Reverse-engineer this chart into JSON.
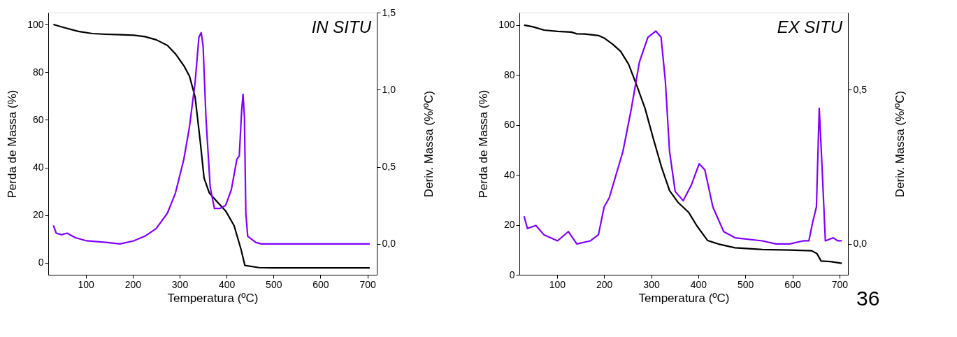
{
  "chart_data": [
    {
      "type": "line",
      "title": "IN SITU",
      "xlabel": "Temperatura (ºC)",
      "ylabel": "Perda de Massa (%)",
      "y2label": "Deriv. Massa (%/ºC)",
      "xlim": [
        20,
        720
      ],
      "ylim": [
        -5,
        105
      ],
      "y2lim": [
        -0.2,
        1.5
      ],
      "xticks": [
        100,
        200,
        300,
        400,
        500,
        600,
        700
      ],
      "yticks": [
        0,
        20,
        40,
        60,
        80,
        100
      ],
      "y2ticks": [
        {
          "value": 0,
          "label": "0,0"
        },
        {
          "value": 0.5,
          "label": "0,5"
        },
        {
          "value": 1,
          "label": "1,0"
        },
        {
          "value": 1.5,
          "label": "1,5"
        }
      ],
      "grid": false,
      "series": [
        {
          "color": "#000000",
          "x": [
            31,
            54,
            84,
            114,
            143,
            173,
            202,
            226,
            250,
            274,
            291,
            309,
            321,
            333,
            344,
            352,
            363,
            380,
            398,
            416,
            431,
            439,
            469,
            498,
            705
          ],
          "values": [
            100,
            98.7,
            97.1,
            96.2,
            95.9,
            95.7,
            95.5,
            94.9,
            93.6,
            91.2,
            87.7,
            82.7,
            78.3,
            69.5,
            50.7,
            35.6,
            29.4,
            25.6,
            21.8,
            15.6,
            5.5,
            -1.1,
            -2,
            -2.1,
            -2.1
          ]
        },
        {
          "color": "#8000ff",
          "axis": "y2",
          "x": [
            31,
            37,
            48,
            60,
            78,
            102,
            143,
            173,
            202,
            226,
            250,
            274,
            291,
            309,
            321,
            333,
            341,
            346,
            350,
            356,
            365,
            374,
            386,
            398,
            410,
            422,
            427,
            432,
            435,
            438,
            441,
            445,
            462,
            474,
            705
          ],
          "values": [
            0.12,
            0.07,
            0.06,
            0.07,
            0.04,
            0.02,
            0.01,
            0.0,
            0.02,
            0.05,
            0.1,
            0.2,
            0.33,
            0.55,
            0.76,
            1.05,
            1.34,
            1.37,
            1.28,
            0.82,
            0.37,
            0.23,
            0.23,
            0.25,
            0.35,
            0.55,
            0.57,
            0.86,
            0.97,
            0.82,
            0.2,
            0.05,
            0.01,
            0.0,
            0.0
          ]
        }
      ]
    },
    {
      "type": "line",
      "title": "EX SITU",
      "xlabel": "Temperatura (ºC)",
      "ylabel": "Perda de Massa (%)",
      "y2label": "Deriv. Massa (%/ºC)",
      "xlim": [
        20,
        718
      ],
      "ylim": [
        0,
        105
      ],
      "y2lim": [
        -0.1,
        0.75
      ],
      "xticks": [
        100,
        200,
        300,
        400,
        500,
        600,
        700
      ],
      "yticks": [
        0,
        20,
        40,
        60,
        80,
        100
      ],
      "y2ticks": [
        {
          "value": 0,
          "label": "0,0"
        },
        {
          "value": 0.5,
          "label": "0,5"
        }
      ],
      "grid": false,
      "annotations": [
        "36"
      ],
      "series": [
        {
          "color": "#000000",
          "x": [
            30,
            49,
            72,
            101,
            130,
            142,
            159,
            188,
            200,
            217,
            235,
            252,
            269,
            287,
            304,
            322,
            339,
            357,
            380,
            397,
            420,
            443,
            478,
            536,
            594,
            641,
            652,
            661,
            681,
            705
          ],
          "values": [
            100,
            99.3,
            98,
            97.5,
            97.2,
            96.5,
            96.4,
            95.8,
            94.8,
            92.5,
            89.5,
            84.3,
            76,
            66.6,
            54.9,
            43.1,
            33.7,
            29,
            24.9,
            19.6,
            13.7,
            12.3,
            10.8,
            10.1,
            9.9,
            9.6,
            8.5,
            5.5,
            5.3,
            4.6
          ]
        },
        {
          "color": "#8000ff",
          "axis": "y2",
          "x": [
            30,
            37,
            55,
            72,
            101,
            124,
            142,
            171,
            188,
            200,
            211,
            240,
            258,
            275,
            293,
            310,
            321,
            330,
            339,
            351,
            368,
            385,
            402,
            414,
            431,
            454,
            478,
            536,
            565,
            594,
            623,
            635,
            643,
            651,
            657,
            663,
            670,
            687,
            696,
            705
          ],
          "values": [
            0.09,
            0.05,
            0.06,
            0.03,
            0.01,
            0.04,
            0.0,
            0.01,
            0.03,
            0.12,
            0.15,
            0.3,
            0.44,
            0.59,
            0.67,
            0.69,
            0.67,
            0.53,
            0.3,
            0.17,
            0.14,
            0.19,
            0.26,
            0.24,
            0.12,
            0.04,
            0.02,
            0.01,
            0.0,
            0.0,
            0.01,
            0.01,
            0.07,
            0.12,
            0.44,
            0.25,
            0.01,
            0.02,
            0.01,
            0.01
          ]
        }
      ]
    }
  ]
}
